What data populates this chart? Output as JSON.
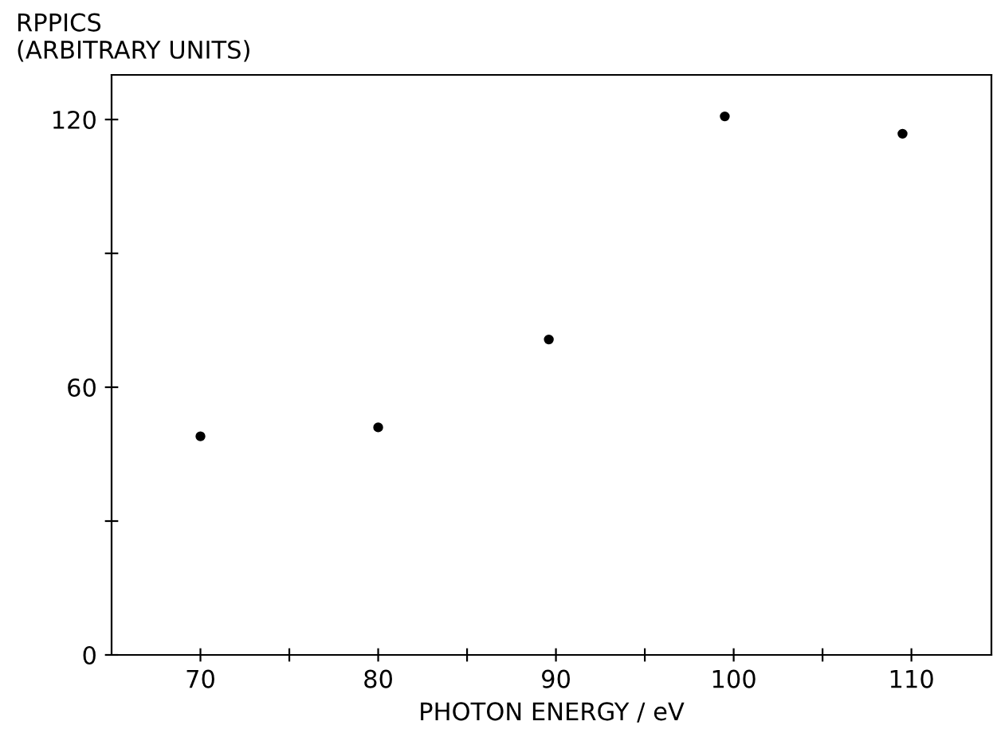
{
  "chart_data": {
    "type": "scatter",
    "ylabel": "RPPICS\n(ARBITRARY UNITS)",
    "xlabel": "PHOTON ENERGY / eV",
    "x": [
      70,
      80,
      89.6,
      99.5,
      109.5
    ],
    "values": [
      49,
      51,
      70.7,
      120.7,
      116.8
    ],
    "color": "#000000",
    "marker": "circle",
    "xlim": [
      65,
      114.5
    ],
    "ylim": [
      0,
      130
    ],
    "xticks": [
      70,
      {
        "value": 75,
        "label": null
      },
      80,
      {
        "value": 85,
        "label": null
      },
      90,
      {
        "value": 95,
        "label": null
      },
      100,
      {
        "value": 105,
        "label": null
      },
      110
    ],
    "yticks": [
      0,
      {
        "value": 30,
        "label": null
      },
      60,
      {
        "value": 90,
        "label": null
      },
      120
    ],
    "grid": false
  }
}
